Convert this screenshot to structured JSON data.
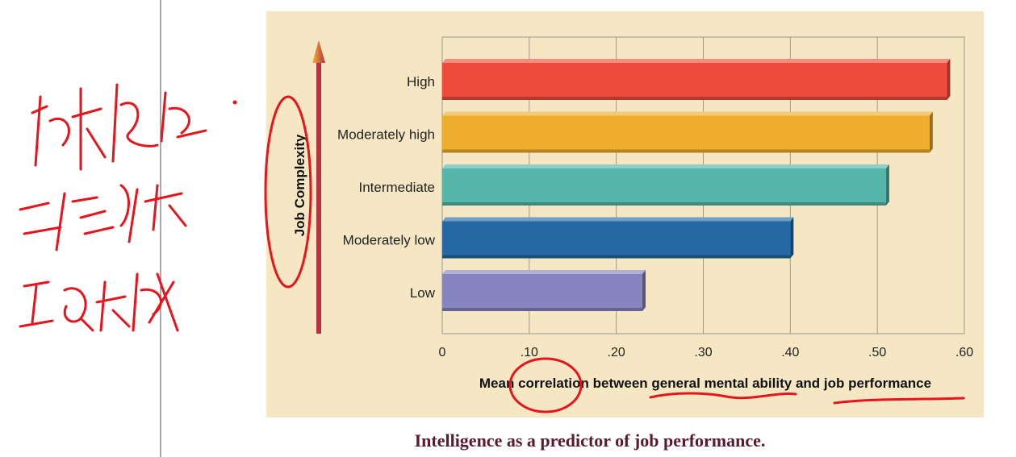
{
  "chart_data": {
    "type": "bar",
    "orientation": "horizontal",
    "categories": [
      "High",
      "Moderately high",
      "Intermediate",
      "Moderately low",
      "Low"
    ],
    "values": [
      0.58,
      0.56,
      0.51,
      0.4,
      0.23
    ],
    "colors": [
      "#ef4b3c",
      "#f0ae2e",
      "#53b6a8",
      "#2469a4",
      "#8784bf"
    ],
    "xlim": [
      0,
      0.6
    ],
    "xticks": [
      "0",
      ".10",
      ".20",
      ".30",
      ".40",
      ".50",
      ".60"
    ],
    "xlabel": "Mean correlation between general mental ability and job performance",
    "ylabel": "Job Complexity",
    "grid": "vertical",
    "background": "#f6e7c4"
  },
  "caption": "Intelligence as a predictor of job performance."
}
